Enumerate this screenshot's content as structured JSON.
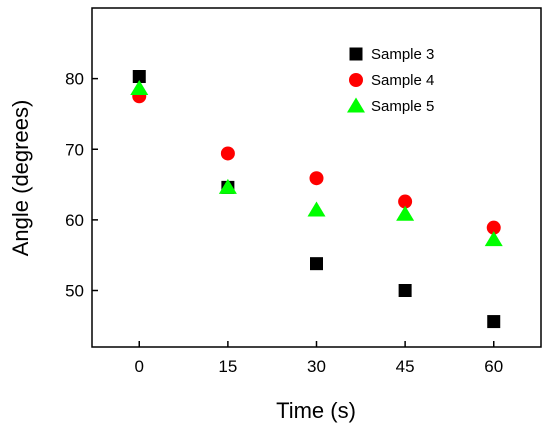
{
  "chart_data": {
    "type": "scatter",
    "title": "",
    "xlabel": "Time (s)",
    "ylabel": "Angle (degrees)",
    "xlim": [
      -8,
      68
    ],
    "ylim": [
      42,
      90
    ],
    "x_ticks": [
      0,
      15,
      30,
      45,
      60
    ],
    "y_ticks": [
      50,
      60,
      70,
      80
    ],
    "grid": false,
    "legend_position": "top-right",
    "series": [
      {
        "name": "Sample 3",
        "marker": "square",
        "color": "#000000",
        "x": [
          0,
          15,
          30,
          45,
          60
        ],
        "y": [
          80.3,
          64.6,
          53.8,
          50.0,
          45.6
        ]
      },
      {
        "name": "Sample 4",
        "marker": "circle",
        "color": "#ff0000",
        "x": [
          0,
          15,
          30,
          45,
          60
        ],
        "y": [
          77.5,
          69.4,
          65.9,
          62.6,
          58.9
        ]
      },
      {
        "name": "Sample 5",
        "marker": "triangle",
        "color": "#00ff00",
        "x": [
          0,
          15,
          30,
          45,
          60
        ],
        "y": [
          78.6,
          64.6,
          61.4,
          60.8,
          57.2
        ]
      }
    ]
  }
}
